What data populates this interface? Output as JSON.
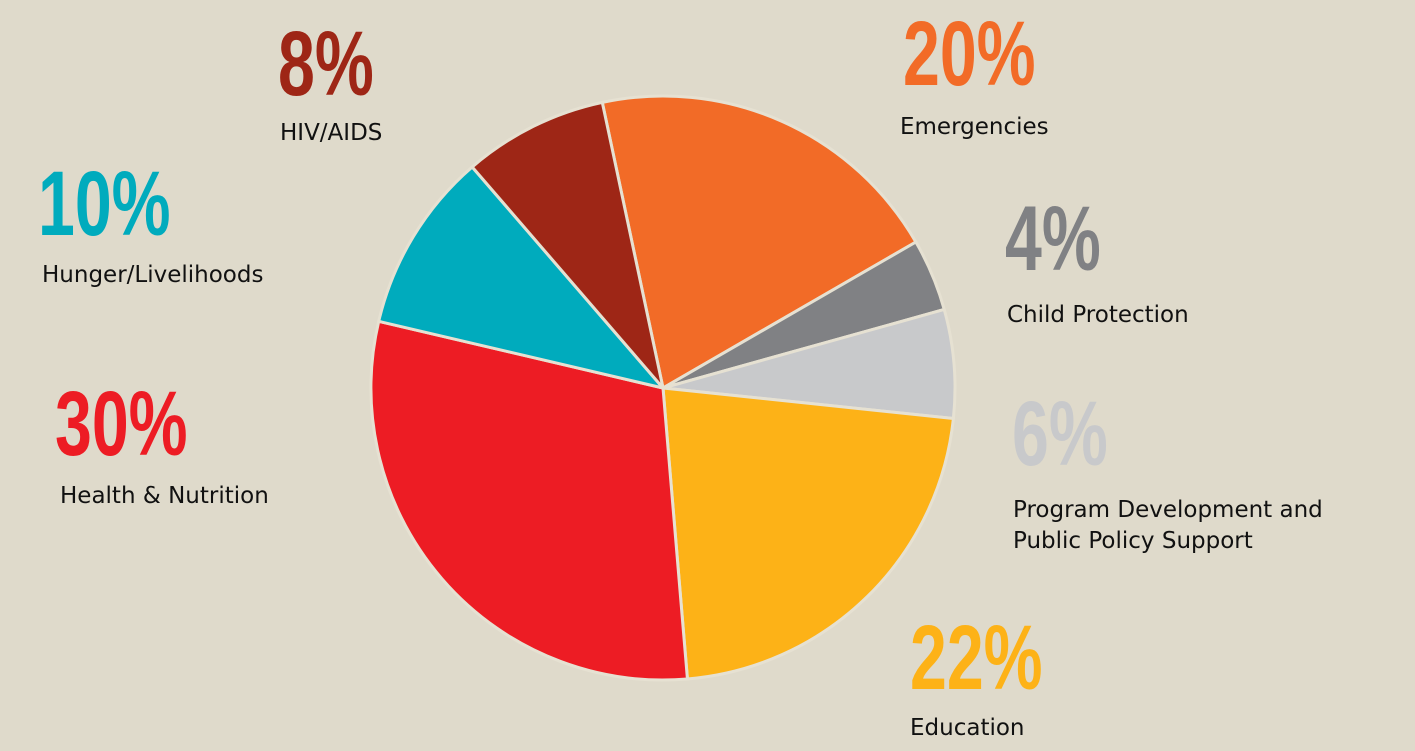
{
  "chart_data": {
    "type": "pie",
    "categories": [
      "Emergencies",
      "Child Protection",
      "Program Development and Public Policy Support",
      "Education",
      "Health & Nutrition",
      "Hunger/Livelihoods",
      "HIV/AIDS"
    ],
    "values": [
      20,
      4,
      6,
      22,
      30,
      10,
      8
    ],
    "value_labels": [
      "20%",
      "4%",
      "6%",
      "22%",
      "30%",
      "10%",
      "8%"
    ],
    "colors": [
      "#f26b27",
      "#808184",
      "#c8c9cb",
      "#fdb217",
      "#ed1c24",
      "#00abbd",
      "#9e2616"
    ]
  }
}
